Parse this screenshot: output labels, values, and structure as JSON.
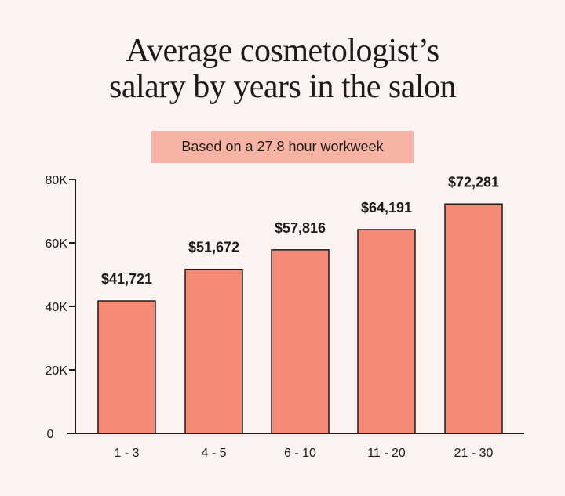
{
  "chart_data": {
    "type": "bar",
    "title": "Average cosmetologist's salary by years in the salon",
    "title_lines": [
      "Average cosmetologist’s",
      "salary by years in the salon"
    ],
    "subtitle": "Based on a 27.8 hour workweek",
    "categories": [
      "1 - 3",
      "4 - 5",
      "6 - 10",
      "11 - 20",
      "21 - 30"
    ],
    "values": [
      41721,
      51672,
      57816,
      64191,
      72281
    ],
    "data_labels": [
      "$41,721",
      "$51,672",
      "$57,816",
      "$64,191",
      "$72,281"
    ],
    "ylim": [
      0,
      80000
    ],
    "yticks": [
      0,
      20000,
      40000,
      60000,
      80000
    ],
    "ytick_labels": [
      "0",
      "20K",
      "40K",
      "60K",
      "80K"
    ],
    "xlabel": "",
    "ylabel": "",
    "grid": false,
    "colors": {
      "bar": "#f68a79",
      "subtitle_box": "#f7b4a4",
      "background": "#fcf3f0",
      "ink": "#1e1a19"
    }
  }
}
